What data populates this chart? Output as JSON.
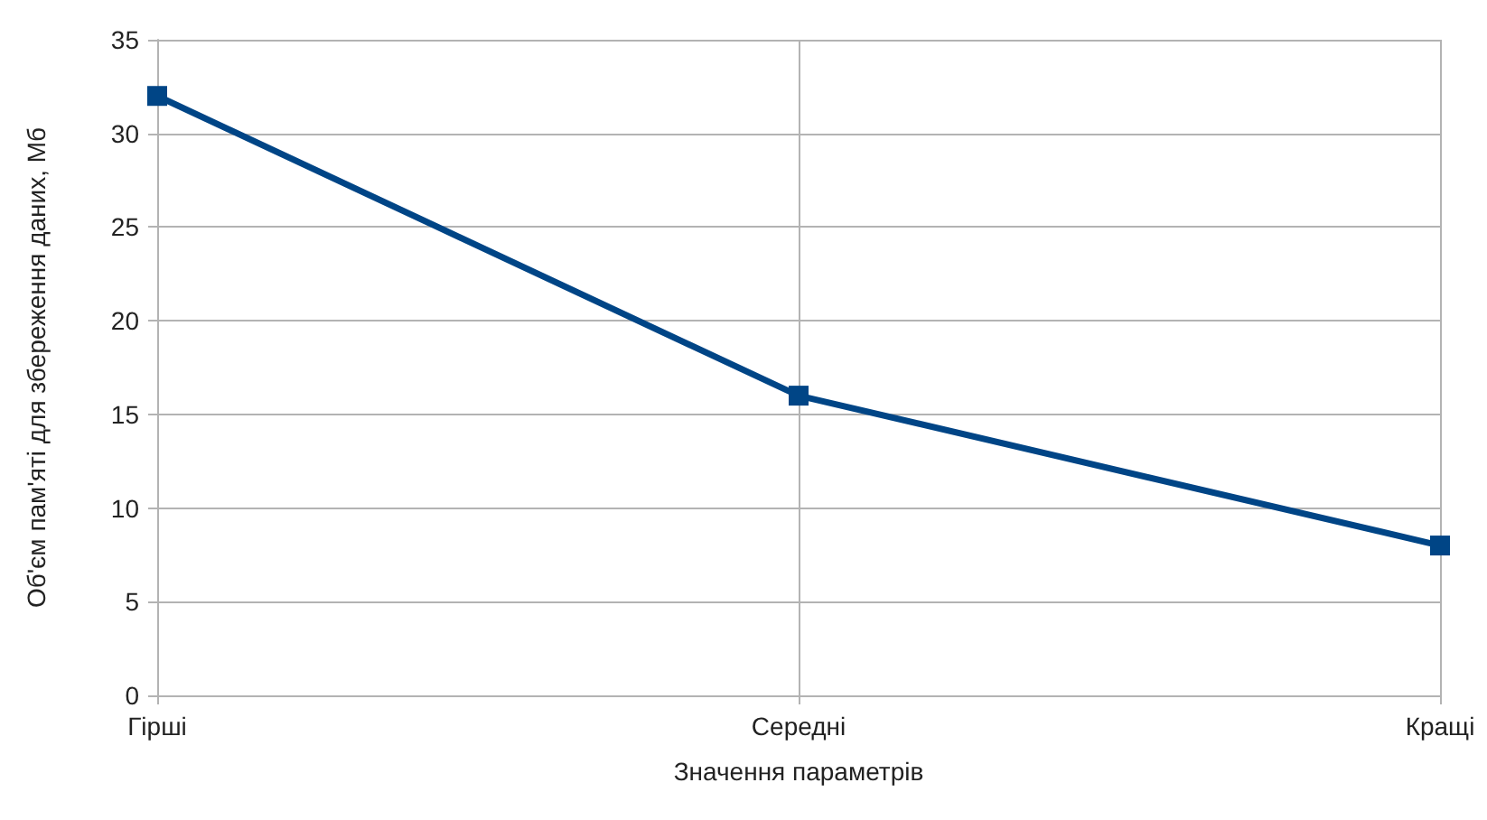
{
  "chart_data": {
    "type": "line",
    "xlabel": "Значення параметрів",
    "ylabel": "Об'єм пам'яті для збереження даних, Мб",
    "categories": [
      "Гірші",
      "Середні",
      "Кращі"
    ],
    "series": [
      {
        "color": "#004586",
        "values": [
          32,
          16,
          8
        ]
      }
    ],
    "ylim": [
      0,
      35
    ],
    "yticks": [
      0,
      5,
      10,
      15,
      20,
      25,
      30,
      35
    ],
    "grid": true,
    "marker": "square",
    "line_style": "solid"
  }
}
